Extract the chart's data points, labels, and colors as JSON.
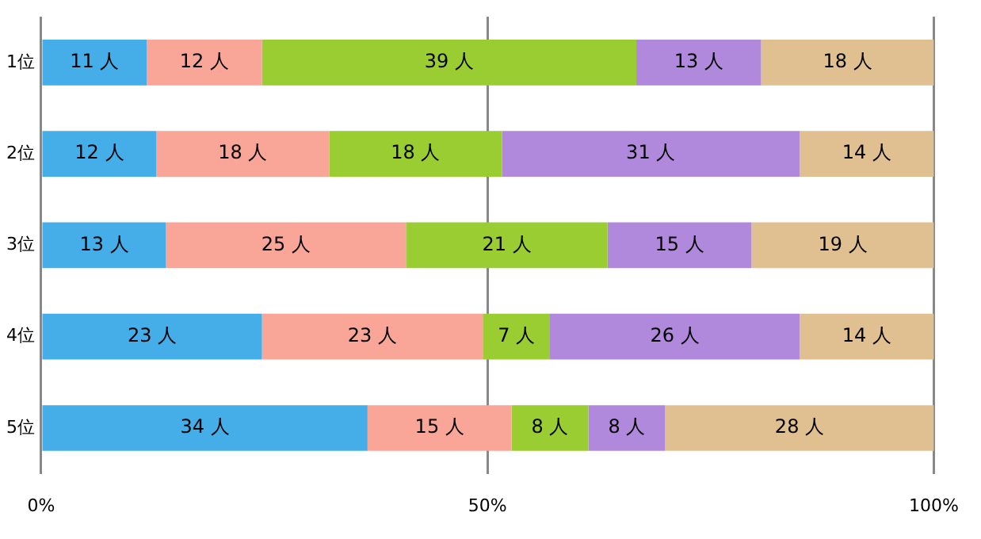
{
  "chart_data": {
    "type": "bar",
    "orientation": "horizontal",
    "stacked": true,
    "categories": [
      "1位",
      "2位",
      "3位",
      "4位",
      "5位"
    ],
    "series": [
      {
        "color": "#45aee8",
        "values": [
          11,
          12,
          13,
          23,
          34
        ],
        "value_labels": [
          "11 人",
          "12 人",
          "13 人",
          "23 人",
          "34 人"
        ]
      },
      {
        "color": "#f9a597",
        "values": [
          12,
          18,
          25,
          23,
          15
        ],
        "value_labels": [
          "12 人",
          "18 人",
          "25 人",
          "23 人",
          "15 人"
        ]
      },
      {
        "color": "#9acd32",
        "values": [
          39,
          18,
          21,
          7,
          8
        ],
        "value_labels": [
          "39 人",
          "18 人",
          "21 人",
          "7 人",
          "8 人"
        ]
      },
      {
        "color": "#b088dc",
        "values": [
          13,
          31,
          15,
          26,
          8
        ],
        "value_labels": [
          "13 人",
          "31 人",
          "15 人",
          "26 人",
          "8 人"
        ]
      },
      {
        "color": "#e0c090",
        "values": [
          18,
          14,
          19,
          14,
          28
        ],
        "value_labels": [
          "18 人",
          "14 人",
          "19 人",
          "14 人",
          "28 人"
        ]
      }
    ],
    "xlim": [
      0,
      93
    ],
    "xticks": [
      {
        "value": 0,
        "label": null
      },
      {
        "value": 46.5,
        "label": null
      },
      {
        "value": 93,
        "label": null
      }
    ],
    "x2lim": [
      0,
      100
    ],
    "x2ticks": [
      {
        "value": 0,
        "label": "0%"
      },
      {
        "value": 50,
        "label": "50%"
      },
      {
        "value": 100,
        "label": "100%"
      }
    ],
    "grid": "x",
    "legend": false
  }
}
